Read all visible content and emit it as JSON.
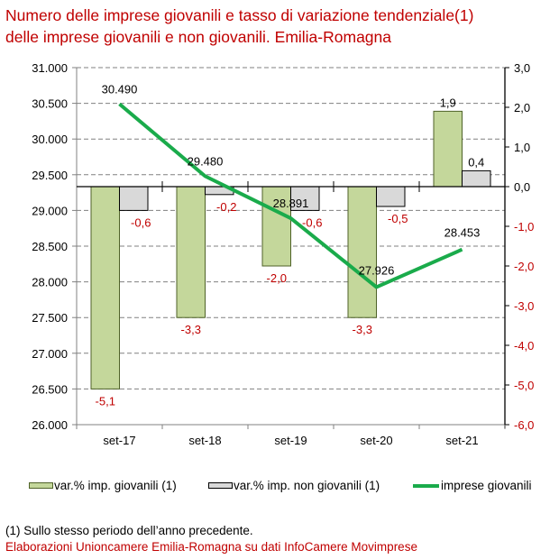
{
  "title_lines": [
    "Numero delle imprese giovanili e tasso di variazione tendenziale(1)",
    "delle imprese giovanili e non giovanili. Emilia-Romagna"
  ],
  "chart_data": {
    "type": "bar+line",
    "title": "Numero delle imprese giovanili e tasso di variazione tendenziale(1) delle imprese giovanili e non giovanili. Emilia-Romagna",
    "categories": [
      "set-17",
      "set-18",
      "set-19",
      "set-20",
      "set-21"
    ],
    "series": [
      {
        "name": "var.% imp. giovanili (1)",
        "type": "bar",
        "axis": "right",
        "values": [
          -5.1,
          -3.3,
          -2.0,
          -3.3,
          1.9
        ],
        "labels": [
          "-5,1",
          "-3,3",
          "-2,0",
          "-3,3",
          "1,9"
        ],
        "color": "#c4d79b",
        "border": "#4f6228"
      },
      {
        "name": "var.% imp. non giovanili (1)",
        "type": "bar",
        "axis": "right",
        "values": [
          -0.6,
          -0.2,
          -0.6,
          -0.5,
          0.4
        ],
        "labels": [
          "-0,6",
          "-0,2",
          "-0,6",
          "-0,5",
          "0,4"
        ],
        "color": "#d9d9d9",
        "border": "#000000"
      },
      {
        "name": "imprese giovanili",
        "type": "line",
        "axis": "left",
        "values": [
          30490,
          29480,
          28891,
          27926,
          28453
        ],
        "labels": [
          "30.490",
          "29.480",
          "28.891",
          "27.926",
          "28.453"
        ],
        "color": "#1aab4b"
      }
    ],
    "left_axis": {
      "range": [
        26000,
        31000
      ],
      "ticks": [
        26000,
        26500,
        27000,
        27500,
        28000,
        28500,
        29000,
        29500,
        30000,
        30500,
        31000
      ],
      "tick_labels": [
        "26.000",
        "26.500",
        "27.000",
        "27.500",
        "28.000",
        "28.500",
        "29.000",
        "29.500",
        "30.000",
        "30.500",
        "31.000"
      ]
    },
    "right_axis": {
      "range": [
        -6.0,
        3.0
      ],
      "ticks": [
        -6,
        -5,
        -4,
        -3,
        -2,
        -1,
        0,
        1,
        2,
        3
      ],
      "tick_labels": [
        "-6,0",
        "-5,0",
        "-4,0",
        "-3,0",
        "-2,0",
        "-1,0",
        "0,0",
        "1,0",
        "2,0",
        "3,0"
      ]
    },
    "grid": true,
    "legend_position": "bottom",
    "colors": {
      "negative_label": "#c00000",
      "positive_label": "#000000",
      "grid": "#808080"
    }
  },
  "legend": [
    {
      "label": "var.% imp. giovanili (1)",
      "kind": "bar",
      "color": "#c4d79b",
      "border": "#4f6228"
    },
    {
      "label": "var.% imp. non giovanili (1)",
      "kind": "bar",
      "color": "#d9d9d9",
      "border": "#000000"
    },
    {
      "label": "imprese giovanili",
      "kind": "line",
      "color": "#1aab4b"
    }
  ],
  "footnote": "(1) Sullo stesso periodo dell’anno precedente.",
  "source": "Elaborazioni Unioncamere Emilia-Romagna su dati InfoCamere Movimprese"
}
